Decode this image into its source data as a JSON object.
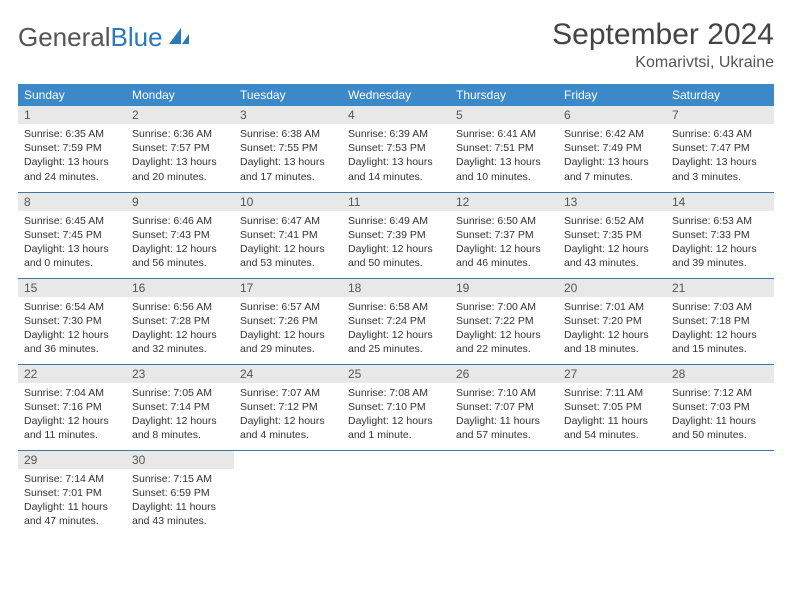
{
  "logo": {
    "word1": "General",
    "word2": "Blue"
  },
  "title": "September 2024",
  "location": "Komarivtsi, Ukraine",
  "colors": {
    "header_bg": "#3b89c9",
    "header_text": "#ffffff",
    "daynum_bg": "#e8e8e8",
    "row_border": "#3b78a8",
    "logo_gray": "#555555",
    "logo_blue": "#2a7ab8"
  },
  "weekdays": [
    "Sunday",
    "Monday",
    "Tuesday",
    "Wednesday",
    "Thursday",
    "Friday",
    "Saturday"
  ],
  "lead_blanks": 0,
  "days": [
    {
      "n": "1",
      "sunrise": "Sunrise: 6:35 AM",
      "sunset": "Sunset: 7:59 PM",
      "dl1": "Daylight: 13 hours",
      "dl2": "and 24 minutes."
    },
    {
      "n": "2",
      "sunrise": "Sunrise: 6:36 AM",
      "sunset": "Sunset: 7:57 PM",
      "dl1": "Daylight: 13 hours",
      "dl2": "and 20 minutes."
    },
    {
      "n": "3",
      "sunrise": "Sunrise: 6:38 AM",
      "sunset": "Sunset: 7:55 PM",
      "dl1": "Daylight: 13 hours",
      "dl2": "and 17 minutes."
    },
    {
      "n": "4",
      "sunrise": "Sunrise: 6:39 AM",
      "sunset": "Sunset: 7:53 PM",
      "dl1": "Daylight: 13 hours",
      "dl2": "and 14 minutes."
    },
    {
      "n": "5",
      "sunrise": "Sunrise: 6:41 AM",
      "sunset": "Sunset: 7:51 PM",
      "dl1": "Daylight: 13 hours",
      "dl2": "and 10 minutes."
    },
    {
      "n": "6",
      "sunrise": "Sunrise: 6:42 AM",
      "sunset": "Sunset: 7:49 PM",
      "dl1": "Daylight: 13 hours",
      "dl2": "and 7 minutes."
    },
    {
      "n": "7",
      "sunrise": "Sunrise: 6:43 AM",
      "sunset": "Sunset: 7:47 PM",
      "dl1": "Daylight: 13 hours",
      "dl2": "and 3 minutes."
    },
    {
      "n": "8",
      "sunrise": "Sunrise: 6:45 AM",
      "sunset": "Sunset: 7:45 PM",
      "dl1": "Daylight: 13 hours",
      "dl2": "and 0 minutes."
    },
    {
      "n": "9",
      "sunrise": "Sunrise: 6:46 AM",
      "sunset": "Sunset: 7:43 PM",
      "dl1": "Daylight: 12 hours",
      "dl2": "and 56 minutes."
    },
    {
      "n": "10",
      "sunrise": "Sunrise: 6:47 AM",
      "sunset": "Sunset: 7:41 PM",
      "dl1": "Daylight: 12 hours",
      "dl2": "and 53 minutes."
    },
    {
      "n": "11",
      "sunrise": "Sunrise: 6:49 AM",
      "sunset": "Sunset: 7:39 PM",
      "dl1": "Daylight: 12 hours",
      "dl2": "and 50 minutes."
    },
    {
      "n": "12",
      "sunrise": "Sunrise: 6:50 AM",
      "sunset": "Sunset: 7:37 PM",
      "dl1": "Daylight: 12 hours",
      "dl2": "and 46 minutes."
    },
    {
      "n": "13",
      "sunrise": "Sunrise: 6:52 AM",
      "sunset": "Sunset: 7:35 PM",
      "dl1": "Daylight: 12 hours",
      "dl2": "and 43 minutes."
    },
    {
      "n": "14",
      "sunrise": "Sunrise: 6:53 AM",
      "sunset": "Sunset: 7:33 PM",
      "dl1": "Daylight: 12 hours",
      "dl2": "and 39 minutes."
    },
    {
      "n": "15",
      "sunrise": "Sunrise: 6:54 AM",
      "sunset": "Sunset: 7:30 PM",
      "dl1": "Daylight: 12 hours",
      "dl2": "and 36 minutes."
    },
    {
      "n": "16",
      "sunrise": "Sunrise: 6:56 AM",
      "sunset": "Sunset: 7:28 PM",
      "dl1": "Daylight: 12 hours",
      "dl2": "and 32 minutes."
    },
    {
      "n": "17",
      "sunrise": "Sunrise: 6:57 AM",
      "sunset": "Sunset: 7:26 PM",
      "dl1": "Daylight: 12 hours",
      "dl2": "and 29 minutes."
    },
    {
      "n": "18",
      "sunrise": "Sunrise: 6:58 AM",
      "sunset": "Sunset: 7:24 PM",
      "dl1": "Daylight: 12 hours",
      "dl2": "and 25 minutes."
    },
    {
      "n": "19",
      "sunrise": "Sunrise: 7:00 AM",
      "sunset": "Sunset: 7:22 PM",
      "dl1": "Daylight: 12 hours",
      "dl2": "and 22 minutes."
    },
    {
      "n": "20",
      "sunrise": "Sunrise: 7:01 AM",
      "sunset": "Sunset: 7:20 PM",
      "dl1": "Daylight: 12 hours",
      "dl2": "and 18 minutes."
    },
    {
      "n": "21",
      "sunrise": "Sunrise: 7:03 AM",
      "sunset": "Sunset: 7:18 PM",
      "dl1": "Daylight: 12 hours",
      "dl2": "and 15 minutes."
    },
    {
      "n": "22",
      "sunrise": "Sunrise: 7:04 AM",
      "sunset": "Sunset: 7:16 PM",
      "dl1": "Daylight: 12 hours",
      "dl2": "and 11 minutes."
    },
    {
      "n": "23",
      "sunrise": "Sunrise: 7:05 AM",
      "sunset": "Sunset: 7:14 PM",
      "dl1": "Daylight: 12 hours",
      "dl2": "and 8 minutes."
    },
    {
      "n": "24",
      "sunrise": "Sunrise: 7:07 AM",
      "sunset": "Sunset: 7:12 PM",
      "dl1": "Daylight: 12 hours",
      "dl2": "and 4 minutes."
    },
    {
      "n": "25",
      "sunrise": "Sunrise: 7:08 AM",
      "sunset": "Sunset: 7:10 PM",
      "dl1": "Daylight: 12 hours",
      "dl2": "and 1 minute."
    },
    {
      "n": "26",
      "sunrise": "Sunrise: 7:10 AM",
      "sunset": "Sunset: 7:07 PM",
      "dl1": "Daylight: 11 hours",
      "dl2": "and 57 minutes."
    },
    {
      "n": "27",
      "sunrise": "Sunrise: 7:11 AM",
      "sunset": "Sunset: 7:05 PM",
      "dl1": "Daylight: 11 hours",
      "dl2": "and 54 minutes."
    },
    {
      "n": "28",
      "sunrise": "Sunrise: 7:12 AM",
      "sunset": "Sunset: 7:03 PM",
      "dl1": "Daylight: 11 hours",
      "dl2": "and 50 minutes."
    },
    {
      "n": "29",
      "sunrise": "Sunrise: 7:14 AM",
      "sunset": "Sunset: 7:01 PM",
      "dl1": "Daylight: 11 hours",
      "dl2": "and 47 minutes."
    },
    {
      "n": "30",
      "sunrise": "Sunrise: 7:15 AM",
      "sunset": "Sunset: 6:59 PM",
      "dl1": "Daylight: 11 hours",
      "dl2": "and 43 minutes."
    }
  ]
}
